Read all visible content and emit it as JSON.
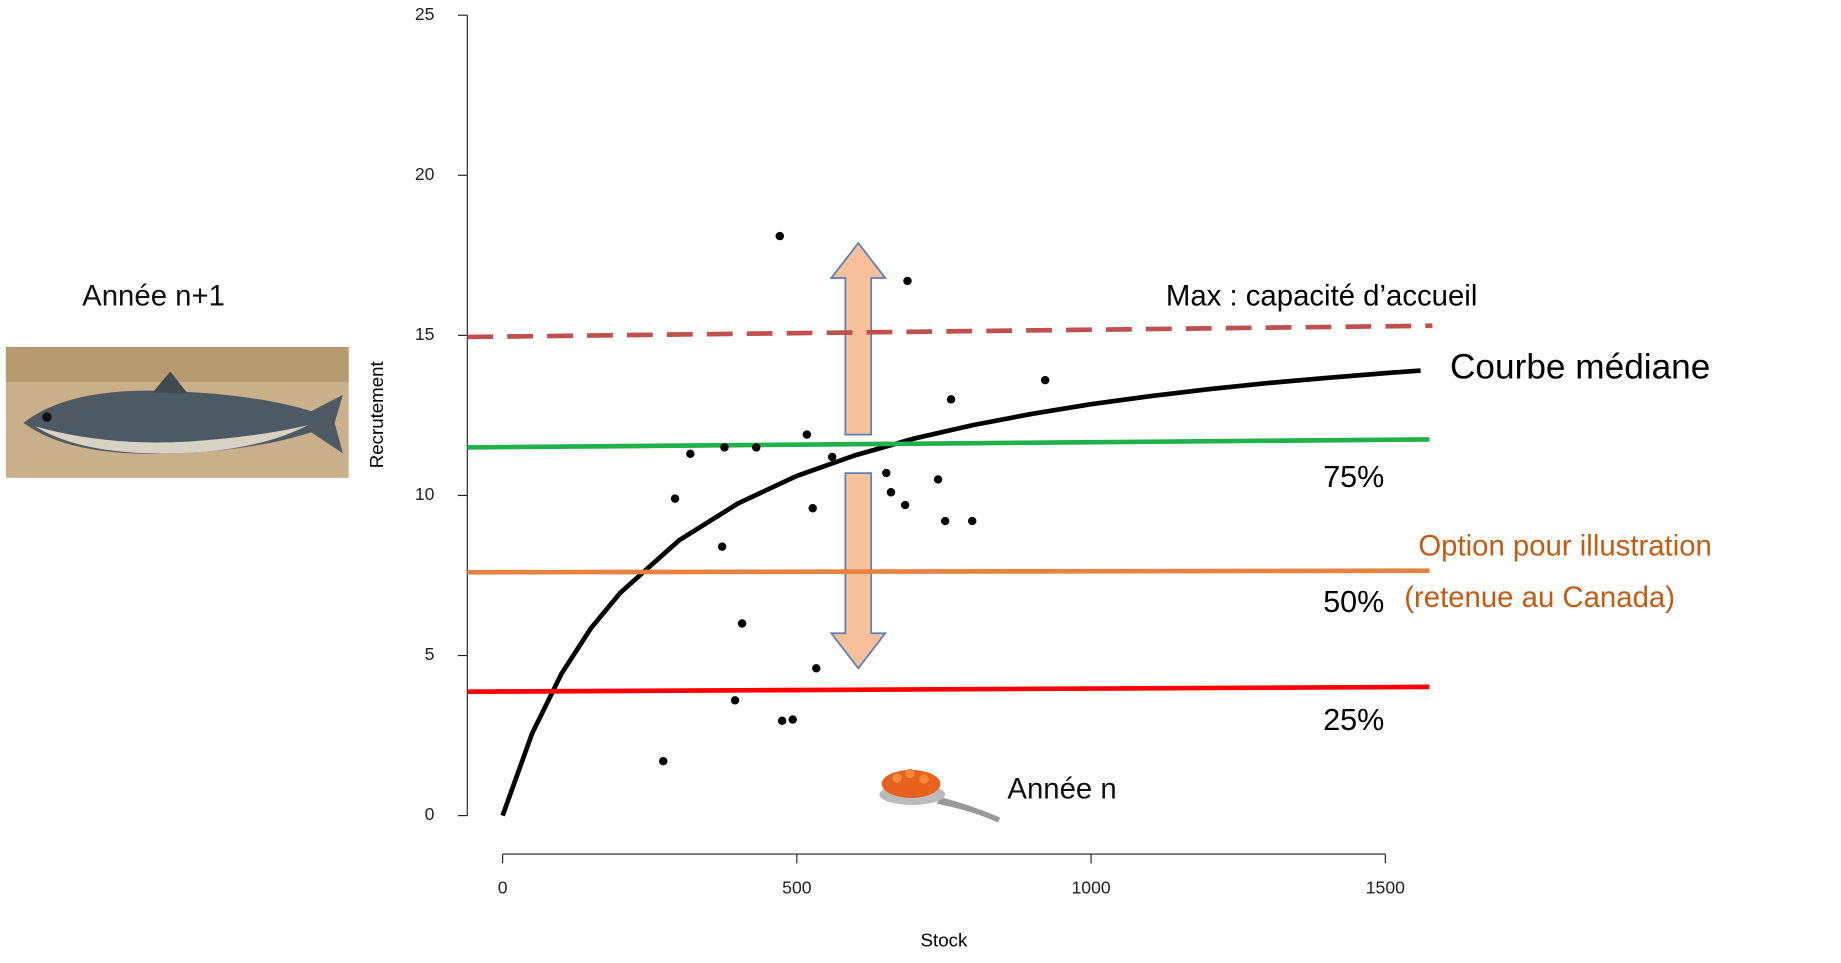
{
  "chart_data": {
    "type": "scatter",
    "xlabel": "Stock",
    "ylabel": "Recrutement",
    "xlim": [
      -60,
      1580
    ],
    "ylim": [
      -1.2,
      25
    ],
    "xticks": [
      0,
      500,
      1000,
      1500
    ],
    "yticks": [
      0,
      5,
      10,
      15,
      20,
      25
    ],
    "points": {
      "color": "#000000",
      "x": [
        471,
        688,
        922,
        762,
        517,
        319,
        377,
        431,
        560,
        293,
        652,
        740,
        527,
        660,
        684,
        752,
        798,
        373,
        407,
        533,
        395,
        475,
        493,
        273
      ],
      "values": [
        18.1,
        16.7,
        13.6,
        13.0,
        11.9,
        11.3,
        11.5,
        11.5,
        11.2,
        9.9,
        10.7,
        10.5,
        9.6,
        10.1,
        9.7,
        9.2,
        9.2,
        8.4,
        6.0,
        4.6,
        3.6,
        2.96,
        3.0,
        1.7
      ]
    },
    "series": [
      {
        "label": "Courbe médiane",
        "color": "#000000",
        "dashed": false,
        "width": 4,
        "x": [
          0,
          50,
          100,
          150,
          200,
          300,
          400,
          500,
          600,
          700,
          800,
          900,
          1000,
          1100,
          1200,
          1300,
          1400,
          1500,
          1560
        ],
        "values": [
          0,
          2.56,
          4.43,
          5.85,
          6.96,
          8.6,
          9.75,
          10.61,
          11.26,
          11.78,
          12.2,
          12.55,
          12.85,
          13.1,
          13.32,
          13.51,
          13.67,
          13.82,
          13.9
        ]
      },
      {
        "label": "Max : capacité d’accueil",
        "color": "#c0504d",
        "dashed": true,
        "width": 4,
        "x": [
          -60,
          1580
        ],
        "values": [
          14.95,
          15.3
        ]
      },
      {
        "label": "75%",
        "color": "#22b04b",
        "dashed": false,
        "width": 4,
        "x": [
          -60,
          1575
        ],
        "values": [
          11.5,
          11.75
        ]
      },
      {
        "label": "50%",
        "color": "#e8823f",
        "dashed": false,
        "width": 4,
        "x": [
          -60,
          1575
        ],
        "values": [
          7.6,
          7.65
        ]
      },
      {
        "label": "25%",
        "color": "#ff0000",
        "dashed": false,
        "width": 4,
        "x": [
          -60,
          1575
        ],
        "values": [
          3.87,
          4.02
        ]
      }
    ],
    "annotations": [
      "Année n+1",
      "Année n",
      "Option pour illustration",
      "(retenue au Canada)"
    ]
  }
}
